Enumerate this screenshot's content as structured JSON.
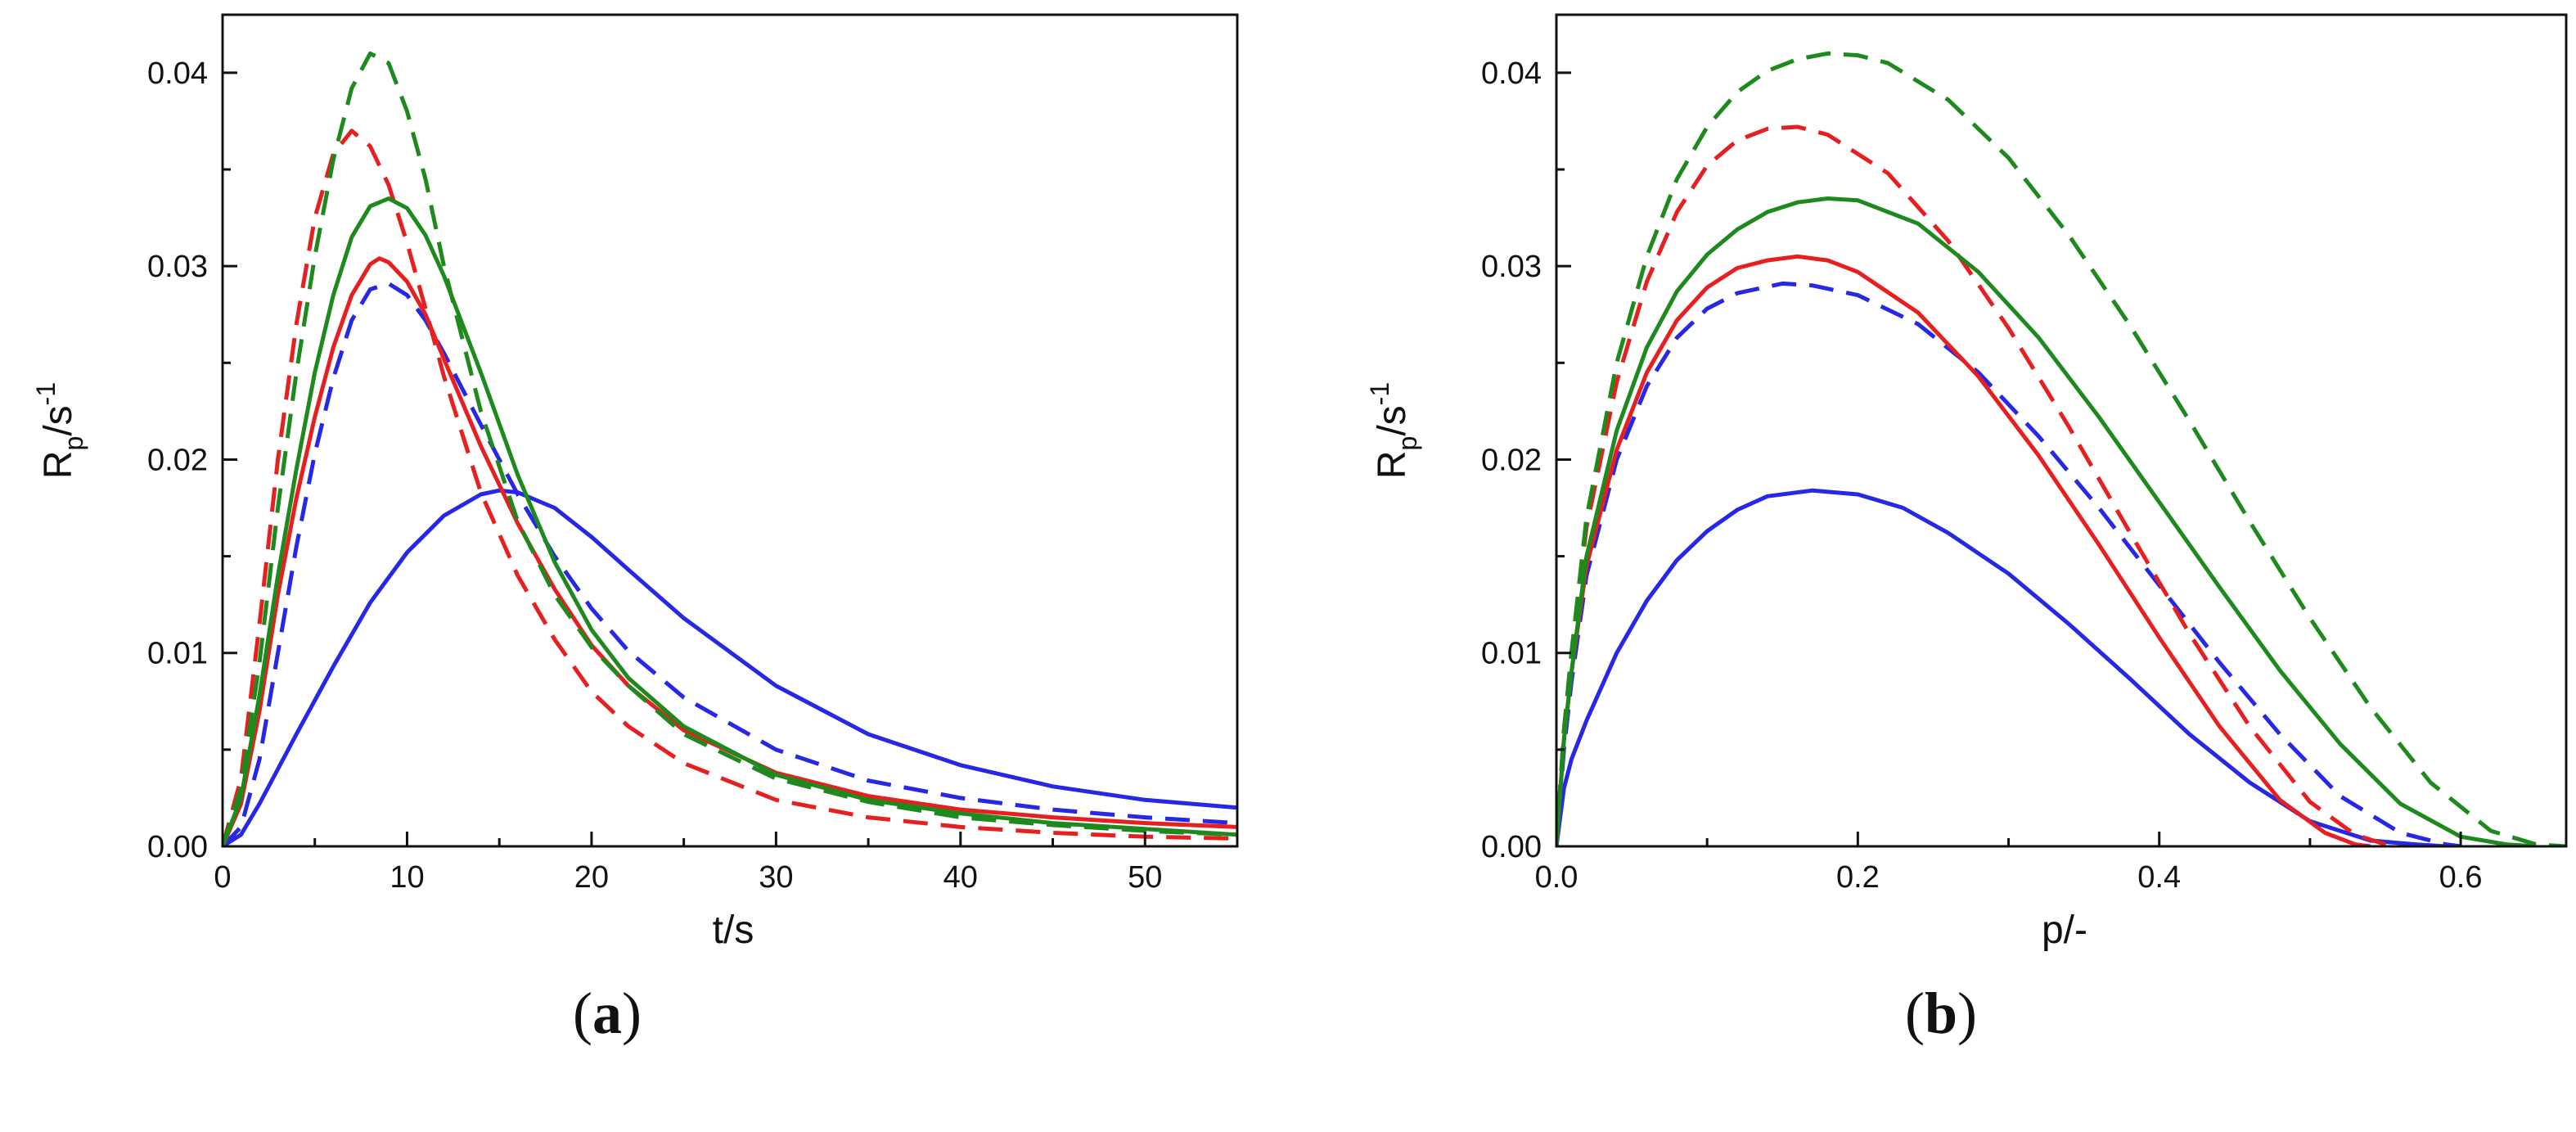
{
  "chart_data": [
    {
      "type": "line",
      "panel": "a",
      "panel_label_open": "(",
      "panel_label_letter": "a",
      "panel_label_close": ")",
      "xlabel": "t/s",
      "ylabel_main": "R",
      "ylabel_sub": "p",
      "ylabel_rest": "/s",
      "ylabel_sup": "-1",
      "xlim": [
        0,
        55
      ],
      "ylim": [
        0,
        0.043
      ],
      "xticks": [
        0,
        10,
        20,
        30,
        40,
        50
      ],
      "xtick_labels": [
        "0",
        "10",
        "20",
        "30",
        "40",
        "50"
      ],
      "yticks": [
        0,
        0.01,
        0.02,
        0.03,
        0.04
      ],
      "ytick_labels": [
        "0.00",
        "0.01",
        "0.02",
        "0.03",
        "0.04"
      ],
      "grid": false,
      "series": [
        {
          "name": "blue-solid",
          "color": "#2727e6",
          "dashed": false,
          "x": [
            0,
            1,
            2,
            4,
            6,
            8,
            10,
            12,
            14,
            15,
            16,
            18,
            20,
            22,
            25,
            30,
            35,
            40,
            45,
            50,
            55
          ],
          "y": [
            0,
            0.0006,
            0.0022,
            0.0058,
            0.0093,
            0.0126,
            0.0152,
            0.0171,
            0.0182,
            0.0184,
            0.0183,
            0.0175,
            0.016,
            0.0143,
            0.0118,
            0.0083,
            0.0058,
            0.0042,
            0.0031,
            0.0024,
            0.002
          ]
        },
        {
          "name": "blue-dashed",
          "color": "#2727e6",
          "dashed": true,
          "x": [
            0,
            1,
            2,
            3,
            4,
            5,
            6,
            7,
            8,
            9,
            10,
            11,
            12,
            14,
            16,
            18,
            20,
            22,
            25,
            30,
            35,
            40,
            45,
            50,
            55
          ],
          "y": [
            0,
            0.001,
            0.0045,
            0.01,
            0.0155,
            0.0203,
            0.0242,
            0.0272,
            0.0288,
            0.0291,
            0.0285,
            0.0272,
            0.0255,
            0.0218,
            0.0182,
            0.015,
            0.0123,
            0.0101,
            0.0077,
            0.005,
            0.0034,
            0.0025,
            0.0019,
            0.0015,
            0.0012
          ]
        },
        {
          "name": "red-solid",
          "color": "#e62020",
          "dashed": false,
          "x": [
            0,
            1,
            2,
            3,
            4,
            5,
            6,
            7,
            8,
            8.5,
            9,
            10,
            11,
            12,
            14,
            16,
            18,
            20,
            22,
            25,
            30,
            35,
            40,
            45,
            50,
            55
          ],
          "y": [
            0,
            0.0022,
            0.007,
            0.013,
            0.018,
            0.0222,
            0.0258,
            0.0285,
            0.0301,
            0.0304,
            0.0302,
            0.0292,
            0.0275,
            0.0252,
            0.0207,
            0.0167,
            0.0133,
            0.0104,
            0.0083,
            0.006,
            0.0038,
            0.0026,
            0.0019,
            0.0015,
            0.0012,
            0.001
          ]
        },
        {
          "name": "red-dashed",
          "color": "#e62020",
          "dashed": true,
          "x": [
            0,
            1,
            2,
            3,
            4,
            5,
            6,
            7,
            8,
            9,
            10,
            11,
            12,
            14,
            16,
            18,
            20,
            22,
            25,
            30,
            35,
            40,
            45,
            50,
            55
          ],
          "y": [
            0,
            0.0035,
            0.0115,
            0.02,
            0.027,
            0.0325,
            0.0358,
            0.037,
            0.0362,
            0.0342,
            0.0312,
            0.0278,
            0.0243,
            0.0183,
            0.014,
            0.0107,
            0.008,
            0.0062,
            0.0043,
            0.0024,
            0.0015,
            0.001,
            0.0007,
            0.0005,
            0.0004
          ]
        },
        {
          "name": "green-solid",
          "color": "#1e8a1e",
          "dashed": false,
          "x": [
            0,
            1,
            2,
            3,
            4,
            5,
            6,
            7,
            8,
            9,
            10,
            11,
            12,
            14,
            16,
            18,
            20,
            22,
            25,
            30,
            35,
            40,
            45,
            50,
            55
          ],
          "y": [
            0,
            0.0025,
            0.0078,
            0.014,
            0.0195,
            0.0245,
            0.0285,
            0.0315,
            0.0331,
            0.0335,
            0.033,
            0.0316,
            0.0295,
            0.0245,
            0.0192,
            0.0147,
            0.0112,
            0.0087,
            0.0062,
            0.0037,
            0.0024,
            0.0017,
            0.0012,
            0.0009,
            0.0006
          ]
        },
        {
          "name": "green-dashed",
          "color": "#1e8a1e",
          "dashed": true,
          "x": [
            0,
            1,
            2,
            3,
            4,
            5,
            6,
            7,
            8,
            9,
            10,
            11,
            12,
            14,
            16,
            18,
            20,
            22,
            25,
            30,
            35,
            40,
            45,
            50,
            55
          ],
          "y": [
            0,
            0.003,
            0.0095,
            0.0175,
            0.0245,
            0.0305,
            0.0355,
            0.0392,
            0.041,
            0.0405,
            0.038,
            0.0345,
            0.03,
            0.0225,
            0.0168,
            0.013,
            0.0103,
            0.0083,
            0.0058,
            0.0035,
            0.0023,
            0.0015,
            0.0011,
            0.0008,
            0.0006
          ]
        }
      ]
    },
    {
      "type": "line",
      "panel": "b",
      "panel_label_open": "(",
      "panel_label_letter": "b",
      "panel_label_close": ")",
      "xlabel": "p/-",
      "ylabel_main": "R",
      "ylabel_sub": "p",
      "ylabel_rest": "/s",
      "ylabel_sup": "-1",
      "xlim": [
        0,
        0.67
      ],
      "ylim": [
        0,
        0.043
      ],
      "xticks": [
        0,
        0.2,
        0.4,
        0.6
      ],
      "xtick_labels": [
        "0.0",
        "0.2",
        "0.4",
        "0.6"
      ],
      "yticks": [
        0,
        0.01,
        0.02,
        0.03,
        0.04
      ],
      "ytick_labels": [
        "0.00",
        "0.01",
        "0.02",
        "0.03",
        "0.04"
      ],
      "grid": false,
      "series": [
        {
          "name": "blue-solid",
          "color": "#2727e6",
          "dashed": false,
          "x": [
            0,
            0.005,
            0.01,
            0.02,
            0.04,
            0.06,
            0.08,
            0.1,
            0.12,
            0.14,
            0.17,
            0.2,
            0.23,
            0.26,
            0.3,
            0.34,
            0.38,
            0.42,
            0.46,
            0.5,
            0.54,
            0.57,
            0.59,
            0.6
          ],
          "y": [
            0,
            0.003,
            0.0045,
            0.0065,
            0.01,
            0.0127,
            0.0148,
            0.0163,
            0.0174,
            0.0181,
            0.0184,
            0.0182,
            0.0175,
            0.0162,
            0.0141,
            0.0115,
            0.0087,
            0.0058,
            0.0033,
            0.0013,
            0.0003,
            0.0001,
            0.0,
            0.0
          ]
        },
        {
          "name": "blue-dashed",
          "color": "#2727e6",
          "dashed": true,
          "x": [
            0,
            0.005,
            0.01,
            0.02,
            0.04,
            0.06,
            0.08,
            0.1,
            0.12,
            0.15,
            0.17,
            0.2,
            0.24,
            0.28,
            0.32,
            0.36,
            0.4,
            0.44,
            0.48,
            0.52,
            0.56,
            0.59,
            0.6
          ],
          "y": [
            0,
            0.005,
            0.0085,
            0.014,
            0.02,
            0.0238,
            0.0263,
            0.0278,
            0.0286,
            0.0291,
            0.029,
            0.0285,
            0.027,
            0.0245,
            0.0212,
            0.0175,
            0.0135,
            0.0095,
            0.0058,
            0.0026,
            0.0007,
            0.0001,
            0.0
          ]
        },
        {
          "name": "red-solid",
          "color": "#e62020",
          "dashed": false,
          "x": [
            0,
            0.005,
            0.01,
            0.02,
            0.04,
            0.06,
            0.08,
            0.1,
            0.12,
            0.14,
            0.16,
            0.18,
            0.2,
            0.24,
            0.28,
            0.32,
            0.36,
            0.4,
            0.44,
            0.48,
            0.51,
            0.53,
            0.54
          ],
          "y": [
            0,
            0.0055,
            0.009,
            0.0145,
            0.0205,
            0.0245,
            0.0272,
            0.0289,
            0.0299,
            0.0303,
            0.0305,
            0.0303,
            0.0297,
            0.0276,
            0.0243,
            0.0202,
            0.0156,
            0.0108,
            0.0062,
            0.0024,
            0.0007,
            0.0001,
            0.0
          ]
        },
        {
          "name": "red-dashed",
          "color": "#e62020",
          "dashed": true,
          "x": [
            0,
            0.005,
            0.01,
            0.02,
            0.04,
            0.06,
            0.08,
            0.1,
            0.12,
            0.14,
            0.16,
            0.18,
            0.22,
            0.26,
            0.3,
            0.34,
            0.38,
            0.42,
            0.46,
            0.5,
            0.53,
            0.55,
            0.56
          ],
          "y": [
            0,
            0.006,
            0.01,
            0.0165,
            0.024,
            0.0292,
            0.0328,
            0.0352,
            0.0365,
            0.0371,
            0.0372,
            0.0368,
            0.0348,
            0.0313,
            0.0268,
            0.0217,
            0.0163,
            0.011,
            0.0062,
            0.0023,
            0.0006,
            0.0001,
            0.0
          ]
        },
        {
          "name": "green-solid",
          "color": "#1e8a1e",
          "dashed": false,
          "x": [
            0,
            0.005,
            0.01,
            0.02,
            0.04,
            0.06,
            0.08,
            0.1,
            0.12,
            0.14,
            0.16,
            0.18,
            0.2,
            0.24,
            0.28,
            0.32,
            0.36,
            0.4,
            0.44,
            0.48,
            0.52,
            0.56,
            0.6,
            0.63,
            0.65
          ],
          "y": [
            0,
            0.0055,
            0.009,
            0.015,
            0.0215,
            0.0258,
            0.0287,
            0.0306,
            0.0319,
            0.0328,
            0.0333,
            0.0335,
            0.0334,
            0.0322,
            0.0297,
            0.0263,
            0.0222,
            0.0178,
            0.0134,
            0.0091,
            0.0053,
            0.0022,
            0.0005,
            0.0001,
            0.0
          ]
        },
        {
          "name": "green-dashed",
          "color": "#1e8a1e",
          "dashed": true,
          "x": [
            0,
            0.005,
            0.01,
            0.02,
            0.04,
            0.06,
            0.08,
            0.1,
            0.12,
            0.14,
            0.16,
            0.18,
            0.2,
            0.22,
            0.26,
            0.3,
            0.34,
            0.38,
            0.42,
            0.46,
            0.5,
            0.54,
            0.58,
            0.62,
            0.65,
            0.67
          ],
          "y": [
            0,
            0.006,
            0.01,
            0.017,
            0.025,
            0.0305,
            0.0345,
            0.0372,
            0.039,
            0.0401,
            0.0407,
            0.041,
            0.0409,
            0.0405,
            0.0386,
            0.0356,
            0.0316,
            0.027,
            0.022,
            0.0168,
            0.0118,
            0.0072,
            0.0033,
            0.0008,
            0.0001,
            0.0
          ]
        }
      ]
    }
  ]
}
